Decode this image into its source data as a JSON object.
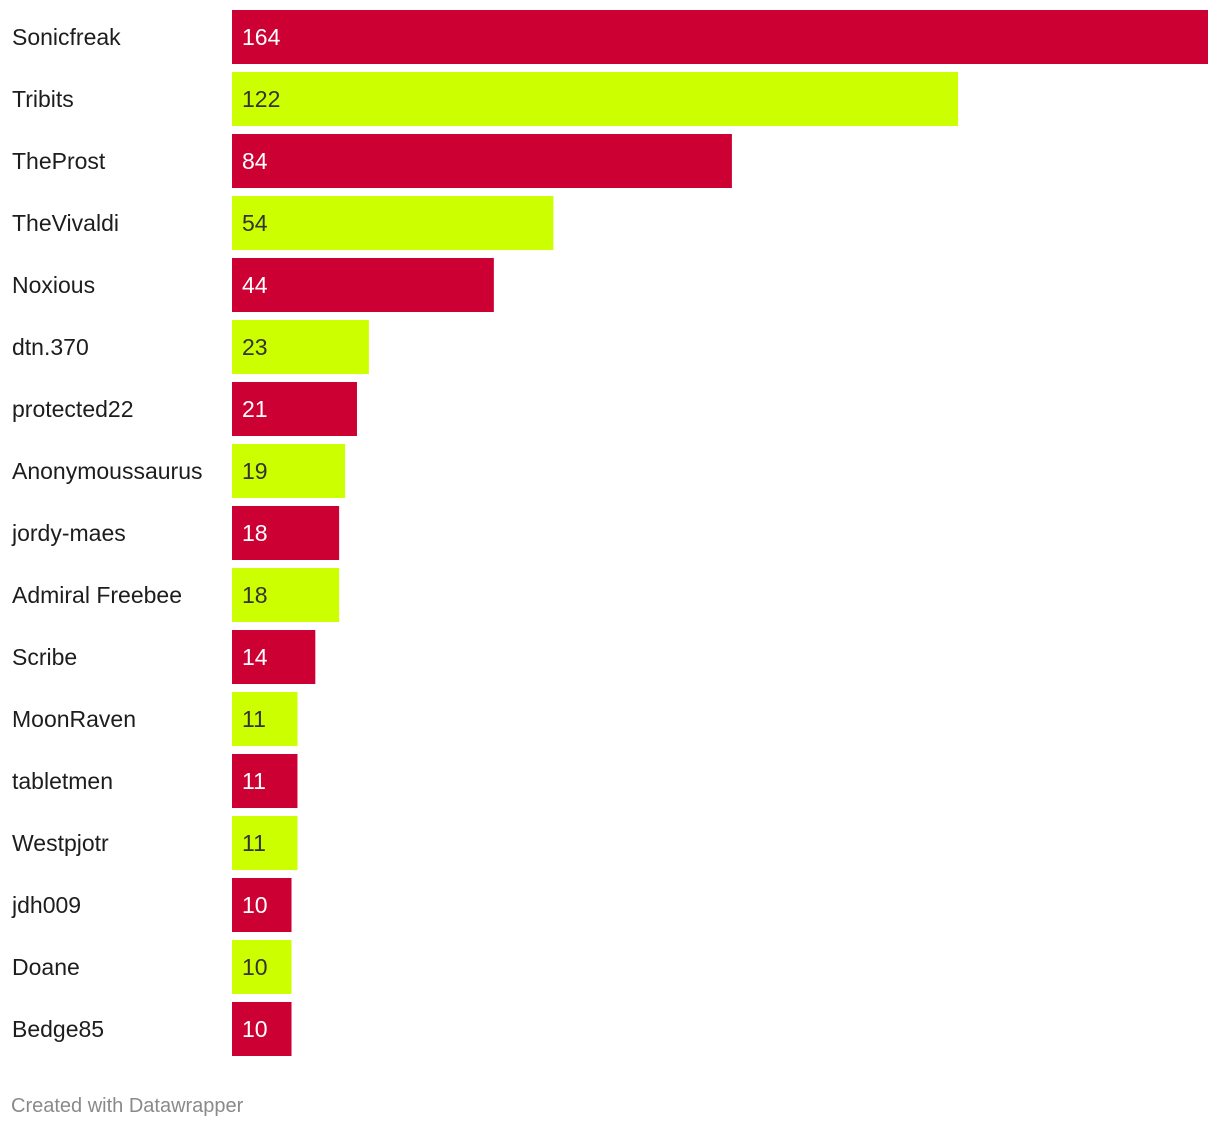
{
  "chart_data": {
    "type": "bar",
    "orientation": "horizontal",
    "categories": [
      "Sonicfreak",
      "Tribits",
      "TheProst",
      "TheVivaldi",
      "Noxious",
      "dtn.370",
      "protected22",
      "Anonymoussaurus",
      "jordy-maes",
      "Admiral Freebee",
      "Scribe",
      "MoonRaven",
      "tabletmen",
      "Westpjotr",
      "jdh009",
      "Doane",
      "Bedge85"
    ],
    "values": [
      164,
      122,
      84,
      54,
      44,
      23,
      21,
      19,
      18,
      18,
      14,
      11,
      11,
      11,
      10,
      10,
      10
    ],
    "value_labels": [
      "164",
      "122",
      "84",
      "54",
      "44",
      "23",
      "21",
      "19",
      "18",
      "18",
      "14",
      "11",
      "11",
      "11",
      "10",
      "10",
      "10"
    ],
    "bar_colors": [
      "#cc0033",
      "#ccff00"
    ],
    "value_label_colors": [
      "#ffffff",
      "#333333"
    ],
    "xlim": [
      0,
      164
    ],
    "grid": false,
    "legend": "none",
    "title": "",
    "xlabel": "",
    "ylabel": ""
  },
  "footer": {
    "credit": "Created with Datawrapper"
  }
}
